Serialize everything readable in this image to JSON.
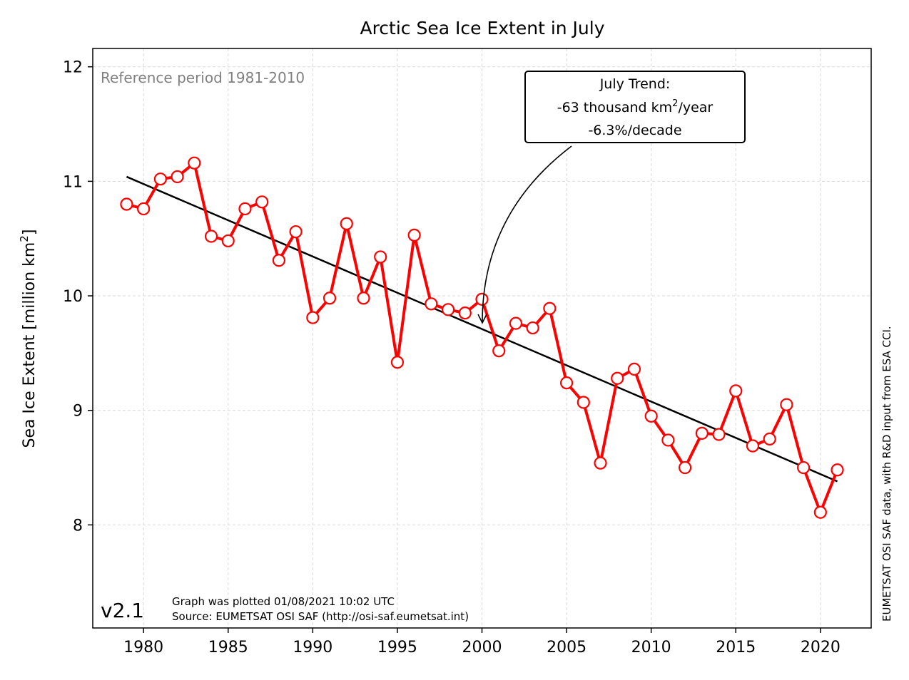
{
  "chart_data": {
    "type": "line",
    "title": "Arctic Sea Ice Extent in July",
    "ylabel_main": "Sea Ice Extent [million km",
    "ylabel_sup": "2",
    "ylabel_end": "]",
    "xlim": [
      1977,
      2023
    ],
    "ylim": [
      7.1,
      12.16
    ],
    "xticks": [
      1980,
      1985,
      1990,
      1995,
      2000,
      2005,
      2010,
      2015,
      2020
    ],
    "yticks": [
      8,
      9,
      10,
      11,
      12
    ],
    "grid": true,
    "series": [
      {
        "color": "#ff0000",
        "marker": "open-circle",
        "x": [
          1979,
          1980,
          1981,
          1982,
          1983,
          1984,
          1985,
          1986,
          1987,
          1988,
          1989,
          1990,
          1991,
          1992,
          1993,
          1994,
          1995,
          1996,
          1997,
          1998,
          1999,
          2000,
          2001,
          2002,
          2003,
          2004,
          2005,
          2006,
          2007,
          2008,
          2009,
          2010,
          2011,
          2012,
          2013,
          2014,
          2015,
          2016,
          2017,
          2018,
          2019,
          2020,
          2021
        ],
        "y": [
          10.8,
          10.76,
          11.02,
          11.04,
          11.16,
          10.52,
          10.48,
          10.76,
          10.82,
          10.31,
          10.56,
          9.81,
          9.98,
          10.63,
          9.98,
          10.34,
          9.42,
          10.53,
          9.93,
          9.88,
          9.85,
          9.97,
          9.52,
          9.76,
          9.72,
          9.89,
          9.24,
          9.07,
          8.54,
          9.28,
          9.36,
          8.95,
          8.74,
          8.5,
          8.8,
          8.79,
          9.17,
          8.69,
          8.75,
          9.05,
          8.5,
          8.11,
          8.48
        ]
      }
    ],
    "trend": {
      "color": "#000000",
      "x": [
        1979,
        2021
      ],
      "y": [
        11.04,
        8.38
      ]
    },
    "annotation": {
      "line1": "July Trend:",
      "line2_main": "-63 thousand km",
      "line2_sup": "2",
      "line2_end": "/year",
      "line3": "-6.3%/decade",
      "arrow_target": [
        2000,
        9.75
      ]
    },
    "reference_note": "Reference period 1981-2010",
    "version": "v2.1",
    "plotted_note": "Graph was plotted 01/08/2021 10:02 UTC",
    "source_note": "Source: EUMETSAT OSI SAF (http://osi-saf.eumetsat.int)",
    "side_note": "EUMETSAT OSI SAF data, with R&D input from ESA CCI."
  }
}
